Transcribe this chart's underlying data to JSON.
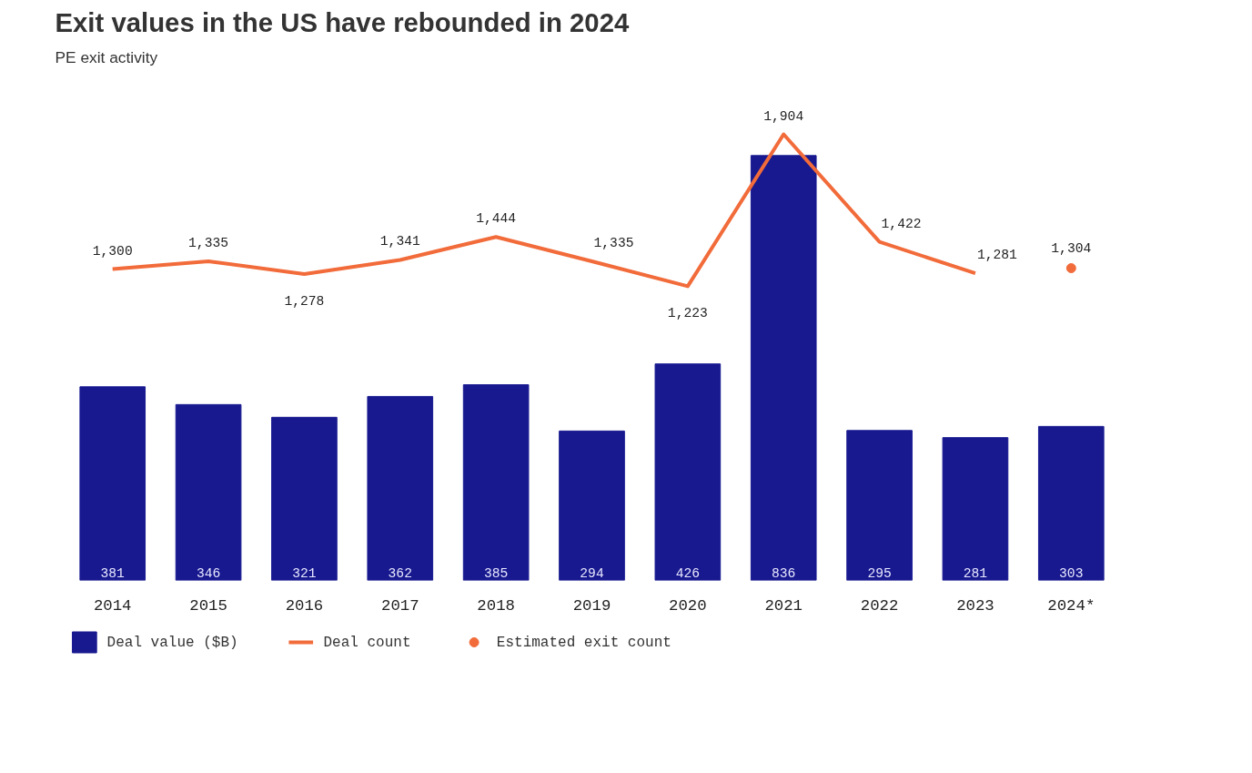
{
  "chart_data": {
    "type": "bar",
    "title": "Exit values in the US have rebounded in 2024",
    "subtitle": "PE exit activity",
    "categories": [
      "2014",
      "2015",
      "2016",
      "2017",
      "2018",
      "2019",
      "2020",
      "2021",
      "2022",
      "2023",
      "2024*"
    ],
    "series": [
      {
        "name": "Deal value ($B)",
        "color": "#18198f",
        "values": [
          381,
          346,
          321,
          362,
          385,
          294,
          426,
          836,
          295,
          281,
          303
        ],
        "value_labels": [
          "381",
          "346",
          "321",
          "362",
          "385",
          "294",
          "426",
          "836",
          "295",
          "281",
          "303"
        ]
      },
      {
        "name": "Deal count",
        "type": "line",
        "axis": "y2",
        "color": "#f26b3a",
        "values": [
          1300,
          1335,
          1278,
          1341,
          1444,
          1335,
          1223,
          1904,
          1422,
          1281,
          null
        ],
        "value_labels": [
          "1,300",
          "1,335",
          "1,278",
          "1,341",
          "1,444",
          "1,335",
          "1,223",
          "1,904",
          "1,422",
          "1,281",
          null
        ]
      },
      {
        "name": "Estimated exit count",
        "type": "scatter",
        "axis": "y2",
        "color": "#f26b3a",
        "values": [
          null,
          null,
          null,
          null,
          null,
          null,
          null,
          null,
          null,
          null,
          1304
        ],
        "value_labels": [
          null,
          null,
          null,
          null,
          null,
          null,
          null,
          null,
          null,
          null,
          "1,304"
        ]
      }
    ],
    "legend": "bottom",
    "tick_labels": "x"
  }
}
